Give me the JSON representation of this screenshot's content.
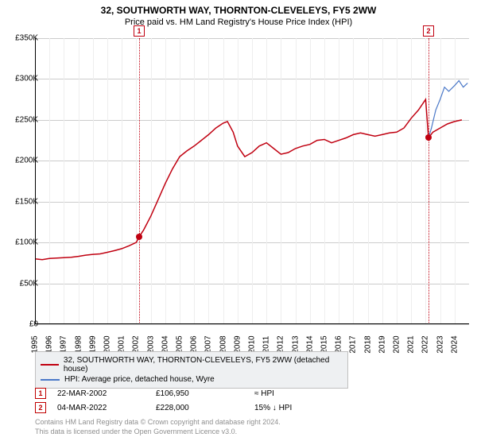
{
  "title": "32, SOUTHWORTH WAY, THORNTON-CLEVELEYS, FY5 2WW",
  "subtitle": "Price paid vs. HM Land Registry's House Price Index (HPI)",
  "chart": {
    "type": "line",
    "background_color": "#ffffff",
    "grid_color": "#cccccc",
    "axis_color": "#000000",
    "ylim": [
      0,
      350000
    ],
    "ytick_step": 50000,
    "yticks": [
      "£0",
      "£50K",
      "£100K",
      "£150K",
      "£200K",
      "£250K",
      "£300K",
      "£350K"
    ],
    "xlim": [
      1995,
      2025
    ],
    "xticks": [
      "1995",
      "1996",
      "1997",
      "1998",
      "1999",
      "2000",
      "2001",
      "2002",
      "2003",
      "2004",
      "2005",
      "2006",
      "2007",
      "2008",
      "2009",
      "2010",
      "2011",
      "2012",
      "2013",
      "2014",
      "2015",
      "2016",
      "2017",
      "2018",
      "2019",
      "2020",
      "2021",
      "2022",
      "2023",
      "2024"
    ],
    "series": [
      {
        "name": "32, SOUTHWORTH WAY, THORNTON-CLEVELEYS, FY5 2WW (detached house)",
        "color": "#c00010",
        "line_width": 1.5,
        "data": [
          [
            1995,
            80000
          ],
          [
            1995.5,
            79000
          ],
          [
            1996,
            80500
          ],
          [
            1996.5,
            81000
          ],
          [
            1997,
            81500
          ],
          [
            1997.5,
            82000
          ],
          [
            1998,
            83000
          ],
          [
            1998.5,
            84500
          ],
          [
            1999,
            85500
          ],
          [
            1999.5,
            86000
          ],
          [
            2000,
            88000
          ],
          [
            2000.5,
            90000
          ],
          [
            2001,
            92500
          ],
          [
            2001.5,
            96000
          ],
          [
            2002,
            100000
          ],
          [
            2002.2,
            106950
          ],
          [
            2002.5,
            115000
          ],
          [
            2003,
            132000
          ],
          [
            2003.5,
            152000
          ],
          [
            2004,
            172000
          ],
          [
            2004.5,
            190000
          ],
          [
            2005,
            205000
          ],
          [
            2005.5,
            212000
          ],
          [
            2006,
            218000
          ],
          [
            2006.5,
            225000
          ],
          [
            2007,
            232000
          ],
          [
            2007.5,
            240000
          ],
          [
            2008,
            246000
          ],
          [
            2008.3,
            248000
          ],
          [
            2008.7,
            235000
          ],
          [
            2009,
            218000
          ],
          [
            2009.5,
            205000
          ],
          [
            2010,
            210000
          ],
          [
            2010.5,
            218000
          ],
          [
            2011,
            222000
          ],
          [
            2011.5,
            215000
          ],
          [
            2012,
            208000
          ],
          [
            2012.5,
            210000
          ],
          [
            2013,
            215000
          ],
          [
            2013.5,
            218000
          ],
          [
            2014,
            220000
          ],
          [
            2014.5,
            225000
          ],
          [
            2015,
            226000
          ],
          [
            2015.5,
            222000
          ],
          [
            2016,
            225000
          ],
          [
            2016.5,
            228000
          ],
          [
            2017,
            232000
          ],
          [
            2017.5,
            234000
          ],
          [
            2018,
            232000
          ],
          [
            2018.5,
            230000
          ],
          [
            2019,
            232000
          ],
          [
            2019.5,
            234000
          ],
          [
            2020,
            235000
          ],
          [
            2020.5,
            240000
          ],
          [
            2021,
            252000
          ],
          [
            2021.5,
            262000
          ],
          [
            2022,
            275000
          ],
          [
            2022.2,
            228000
          ],
          [
            2022.5,
            235000
          ],
          [
            2023,
            240000
          ],
          [
            2023.5,
            245000
          ],
          [
            2024,
            248000
          ],
          [
            2024.5,
            250000
          ]
        ]
      },
      {
        "name": "HPI: Average price, detached house, Wyre",
        "color": "#4a78c8",
        "line_width": 1.2,
        "data": [
          [
            2022.2,
            228000
          ],
          [
            2022.4,
            240000
          ],
          [
            2022.7,
            262000
          ],
          [
            2023,
            275000
          ],
          [
            2023.3,
            290000
          ],
          [
            2023.6,
            285000
          ],
          [
            2024,
            292000
          ],
          [
            2024.3,
            298000
          ],
          [
            2024.6,
            290000
          ],
          [
            2024.9,
            295000
          ]
        ]
      }
    ],
    "markers": [
      {
        "id": "1",
        "x": 2002.2,
        "y": 106950,
        "color": "#c00010"
      },
      {
        "id": "2",
        "x": 2022.2,
        "y": 228000,
        "color": "#c00010"
      }
    ]
  },
  "legend": {
    "items": [
      {
        "label": "32, SOUTHWORTH WAY, THORNTON-CLEVELEYS, FY5 2WW (detached house)",
        "color": "#c00010"
      },
      {
        "label": "HPI: Average price, detached house, Wyre",
        "color": "#4a78c8"
      }
    ]
  },
  "data_rows": [
    {
      "id": "1",
      "date": "22-MAR-2002",
      "price": "£106,950",
      "note": "≈ HPI"
    },
    {
      "id": "2",
      "date": "04-MAR-2022",
      "price": "£228,000",
      "note": "15% ↓ HPI"
    }
  ],
  "footer": {
    "line1": "Contains HM Land Registry data © Crown copyright and database right 2024.",
    "line2": "This data is licensed under the Open Government Licence v3.0."
  }
}
